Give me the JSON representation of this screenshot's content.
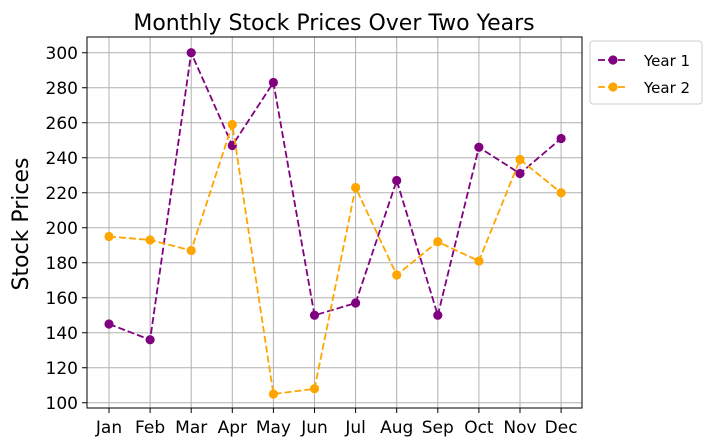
{
  "chart_data": {
    "type": "line",
    "title": "Monthly Stock Prices Over Two Years",
    "xlabel": "",
    "ylabel": "Stock Prices",
    "categories": [
      "Jan",
      "Feb",
      "Mar",
      "Apr",
      "May",
      "Jun",
      "Jul",
      "Aug",
      "Sep",
      "Oct",
      "Nov",
      "Dec"
    ],
    "ylim": [
      97,
      309
    ],
    "yticks": [
      100,
      120,
      140,
      160,
      180,
      200,
      220,
      240,
      260,
      280,
      300
    ],
    "grid": true,
    "legend_position": "outside-top-right",
    "series": [
      {
        "name": "Year 1",
        "color": "#800080",
        "line_style": "dashed",
        "marker": "circle",
        "values": [
          145,
          136,
          300,
          247,
          283,
          150,
          157,
          227,
          150,
          246,
          231,
          251
        ]
      },
      {
        "name": "Year 2",
        "color": "#FFA500",
        "line_style": "dashed",
        "marker": "circle",
        "values": [
          195,
          193,
          187,
          259,
          105,
          108,
          223,
          173,
          192,
          181,
          239,
          220
        ]
      }
    ]
  }
}
